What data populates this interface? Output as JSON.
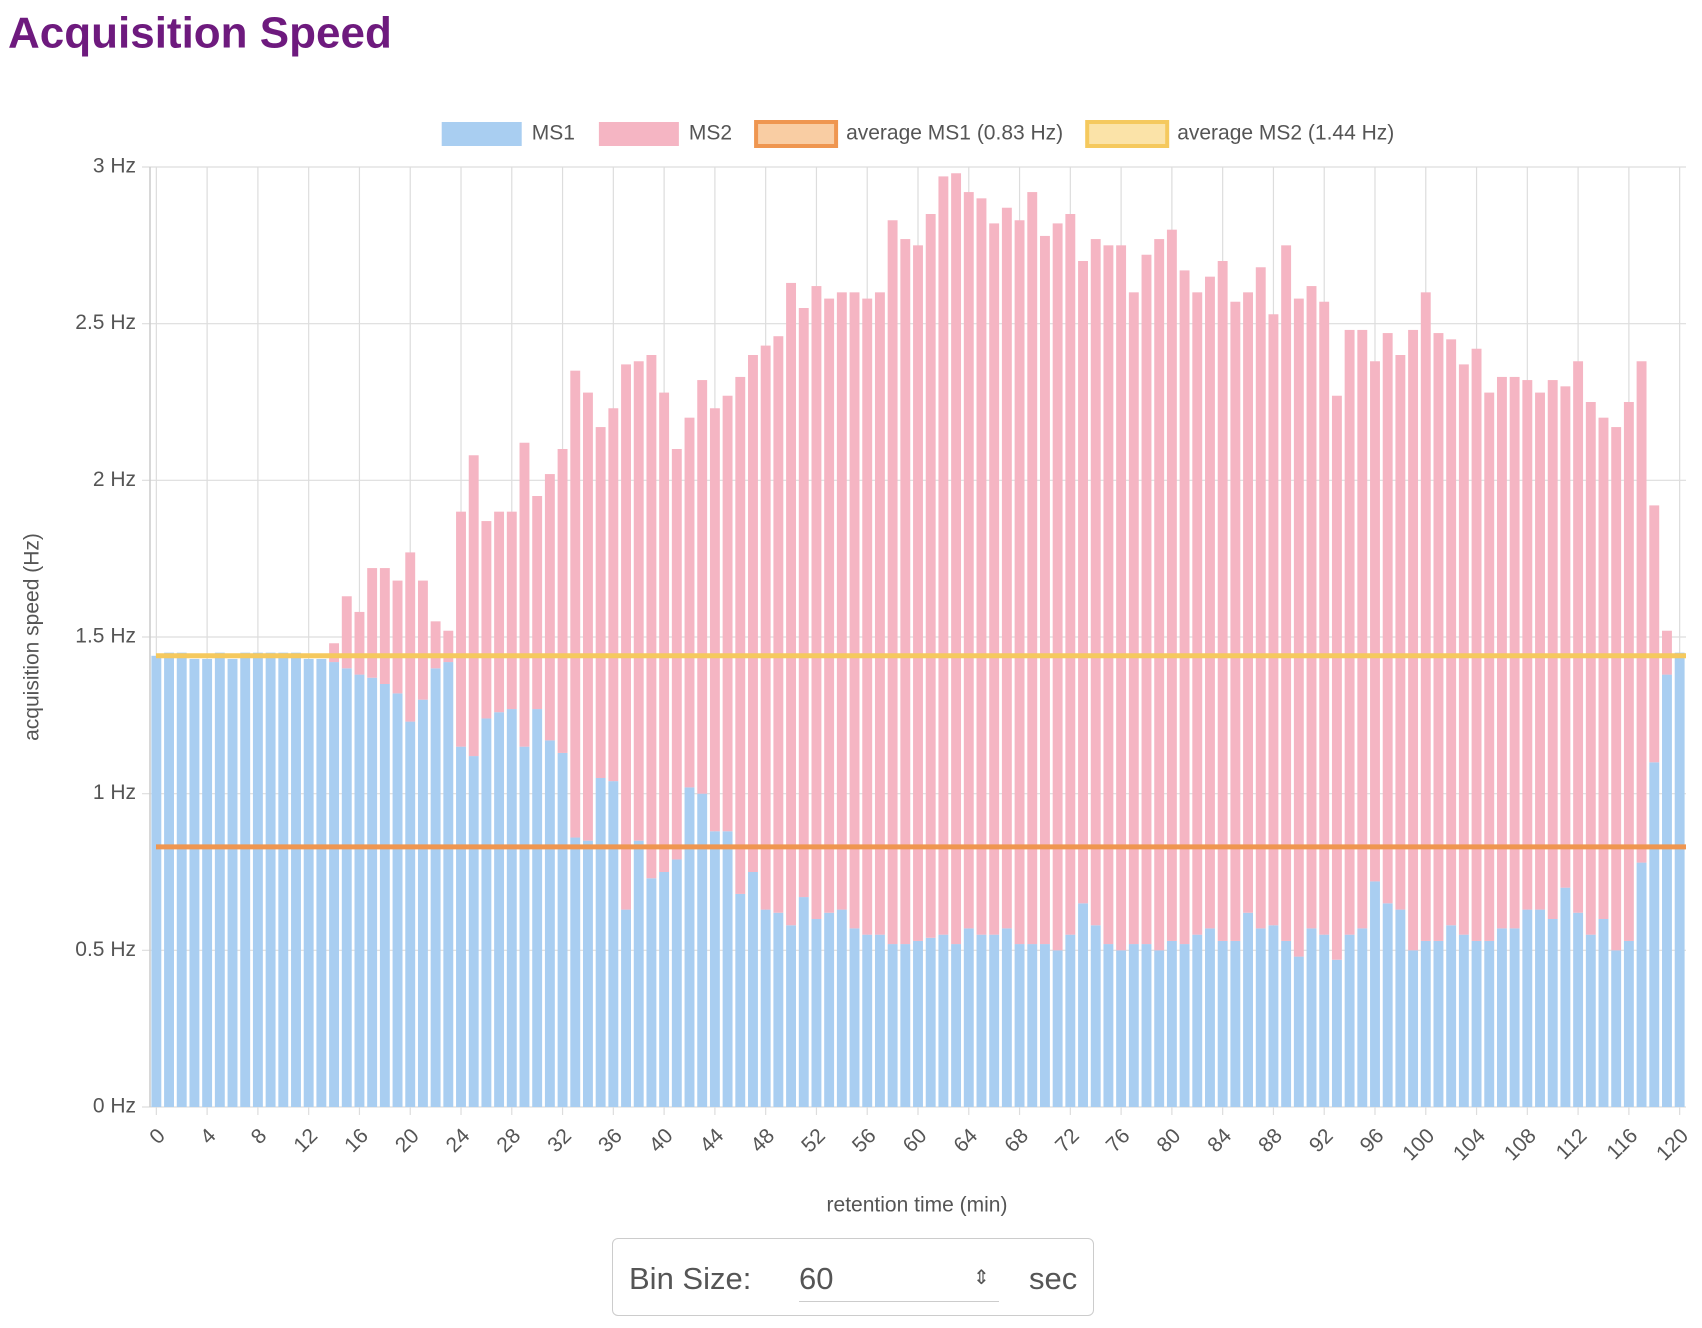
{
  "title": "Acquisition Speed",
  "chart_data": {
    "type": "stacked_bar",
    "x_label": "retention time (min)",
    "y_label": "acquisition speed (Hz)",
    "x": [
      0,
      1,
      2,
      3,
      4,
      5,
      6,
      7,
      8,
      9,
      10,
      11,
      12,
      13,
      14,
      15,
      16,
      17,
      18,
      19,
      20,
      21,
      22,
      23,
      24,
      25,
      26,
      27,
      28,
      29,
      30,
      31,
      32,
      33,
      34,
      35,
      36,
      37,
      38,
      39,
      40,
      41,
      42,
      43,
      44,
      45,
      46,
      47,
      48,
      49,
      50,
      51,
      52,
      53,
      54,
      55,
      56,
      57,
      58,
      59,
      60,
      61,
      62,
      63,
      64,
      65,
      66,
      67,
      68,
      69,
      70,
      71,
      72,
      73,
      74,
      75,
      76,
      77,
      78,
      79,
      80,
      81,
      82,
      83,
      84,
      85,
      86,
      87,
      88,
      89,
      90,
      91,
      92,
      93,
      94,
      95,
      96,
      97,
      98,
      99,
      100,
      101,
      102,
      103,
      104,
      105,
      106,
      107,
      108,
      109,
      110,
      111,
      112,
      113,
      114,
      115,
      116,
      117,
      118,
      119,
      120
    ],
    "xlim": [
      -0.5,
      120.5
    ],
    "xticks": [
      0,
      4,
      8,
      12,
      16,
      20,
      24,
      28,
      32,
      36,
      40,
      44,
      48,
      52,
      56,
      60,
      64,
      68,
      72,
      76,
      80,
      84,
      88,
      92,
      96,
      100,
      104,
      108,
      112,
      116,
      120
    ],
    "ylim": [
      0,
      3
    ],
    "yticks": [
      {
        "value": 0,
        "label": "0 Hz"
      },
      {
        "value": 0.5,
        "label": "0.5 Hz"
      },
      {
        "value": 1,
        "label": "1 Hz"
      },
      {
        "value": 1.5,
        "label": "1.5 Hz"
      },
      {
        "value": 2,
        "label": "2 Hz"
      },
      {
        "value": 2.5,
        "label": "2.5 Hz"
      },
      {
        "value": 3,
        "label": "3 Hz"
      }
    ],
    "grid": true,
    "series": [
      {
        "name": "MS1",
        "color": "#a9cef1",
        "values": [
          1.44,
          1.45,
          1.45,
          1.43,
          1.43,
          1.45,
          1.43,
          1.45,
          1.45,
          1.45,
          1.45,
          1.45,
          1.43,
          1.43,
          1.42,
          1.4,
          1.38,
          1.37,
          1.35,
          1.32,
          1.23,
          1.3,
          1.4,
          1.42,
          1.15,
          1.12,
          1.24,
          1.26,
          1.27,
          1.15,
          1.27,
          1.17,
          1.13,
          0.86,
          0.85,
          1.05,
          1.04,
          0.63,
          0.85,
          0.73,
          0.75,
          0.79,
          1.02,
          1.0,
          0.88,
          0.88,
          0.68,
          0.75,
          0.63,
          0.62,
          0.58,
          0.67,
          0.6,
          0.62,
          0.63,
          0.57,
          0.55,
          0.55,
          0.52,
          0.52,
          0.53,
          0.54,
          0.55,
          0.52,
          0.57,
          0.55,
          0.55,
          0.57,
          0.52,
          0.52,
          0.52,
          0.5,
          0.55,
          0.65,
          0.58,
          0.52,
          0.5,
          0.52,
          0.52,
          0.5,
          0.53,
          0.52,
          0.55,
          0.57,
          0.53,
          0.53,
          0.62,
          0.57,
          0.58,
          0.53,
          0.48,
          0.57,
          0.55,
          0.47,
          0.55,
          0.57,
          0.72,
          0.65,
          0.63,
          0.5,
          0.53,
          0.53,
          0.58,
          0.55,
          0.53,
          0.53,
          0.57,
          0.57,
          0.63,
          0.63,
          0.6,
          0.7,
          0.62,
          0.55,
          0.6,
          0.5,
          0.53,
          0.78,
          1.1,
          1.38,
          1.45
        ]
      },
      {
        "name": "MS2",
        "color": "#f5b5c3",
        "values": [
          0,
          0,
          0,
          0,
          0,
          0,
          0,
          0,
          0,
          0,
          0,
          0,
          0,
          0,
          0.06,
          0.23,
          0.2,
          0.35,
          0.37,
          0.36,
          0.54,
          0.38,
          0.15,
          0.1,
          0.75,
          0.96,
          0.63,
          0.64,
          0.63,
          0.97,
          0.68,
          0.85,
          0.97,
          1.49,
          1.43,
          1.12,
          1.19,
          1.74,
          1.53,
          1.67,
          1.53,
          1.31,
          1.18,
          1.32,
          1.35,
          1.39,
          1.65,
          1.65,
          1.8,
          1.84,
          2.05,
          1.88,
          2.02,
          1.96,
          1.97,
          2.03,
          2.03,
          2.05,
          2.31,
          2.25,
          2.22,
          2.31,
          2.42,
          2.46,
          2.35,
          2.35,
          2.27,
          2.3,
          2.31,
          2.4,
          2.26,
          2.32,
          2.3,
          2.05,
          2.19,
          2.23,
          2.25,
          2.08,
          2.2,
          2.27,
          2.27,
          2.15,
          2.05,
          2.08,
          2.17,
          2.04,
          1.98,
          2.11,
          1.95,
          2.22,
          2.1,
          2.05,
          2.02,
          1.8,
          1.93,
          1.91,
          1.66,
          1.82,
          1.77,
          1.98,
          2.07,
          1.94,
          1.87,
          1.82,
          1.89,
          1.75,
          1.76,
          1.76,
          1.69,
          1.65,
          1.72,
          1.6,
          1.76,
          1.7,
          1.6,
          1.67,
          1.72,
          1.6,
          0.82,
          0.14,
          0
        ]
      }
    ],
    "average_lines": [
      {
        "name": "average MS1 (0.83 Hz)",
        "value": 0.83,
        "color": "#ef9650",
        "fill": "#f9cda3"
      },
      {
        "name": "average MS2 (1.44 Hz)",
        "value": 1.44,
        "color": "#f5c95e",
        "fill": "#fbe3a8"
      }
    ],
    "legend_position": "top"
  },
  "controls": {
    "label": "Bin Size:",
    "value": "60",
    "unit": "sec"
  }
}
